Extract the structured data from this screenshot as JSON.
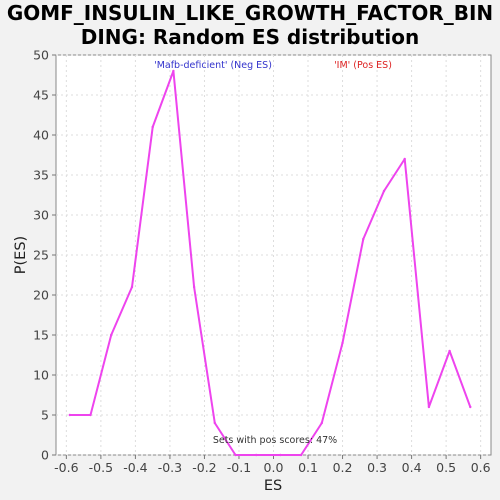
{
  "chart_data": {
    "type": "line",
    "title": "GOMF_INSULIN_LIKE_GROWTH_FACTOR_BINDING: Random ES distribution",
    "title_lines": [
      "GOMF_INSULIN_LIKE_GROWTH_FACTOR_BIN",
      "DING: Random ES distribution"
    ],
    "xlabel": "ES",
    "ylabel": "P(ES)",
    "xlim": [
      -0.63,
      0.63
    ],
    "ylim": [
      0,
      50
    ],
    "xticks": [
      -0.6,
      -0.5,
      -0.4,
      -0.3,
      -0.2,
      -0.1,
      0.0,
      0.1,
      0.2,
      0.3,
      0.4,
      0.5,
      0.6
    ],
    "xtick_labels": [
      "-0.6",
      "-0.5",
      "-0.4",
      "-0.3",
      "-0.2",
      "-0.1",
      "0.0",
      "0.1",
      "0.2",
      "0.3",
      "0.4",
      "0.5",
      "0.6"
    ],
    "yticks": [
      0,
      5,
      10,
      15,
      20,
      25,
      30,
      35,
      40,
      45,
      50
    ],
    "ytick_labels": [
      "0",
      "5",
      "10",
      "15",
      "20",
      "25",
      "30",
      "35",
      "40",
      "45",
      "50"
    ],
    "grid": true,
    "series": [
      {
        "color": "#ee44ee",
        "x": [
          -0.59,
          -0.53,
          -0.47,
          -0.41,
          -0.35,
          -0.29,
          -0.23,
          -0.17,
          -0.11,
          -0.05,
          0.02,
          0.08,
          0.14,
          0.2,
          0.26,
          0.32,
          0.38,
          0.45,
          0.51,
          0.57
        ],
        "y": [
          5,
          5,
          15,
          21,
          41,
          48,
          21,
          4,
          0,
          0,
          0,
          0,
          4,
          14,
          27,
          33,
          37,
          6,
          13,
          6
        ]
      }
    ],
    "annotations": {
      "neg_label": "'Mafb-deficient' (Neg ES)",
      "pos_label": "'IM' (Pos ES)",
      "footer": "Sets with pos scores: 47%"
    },
    "colors": {
      "neg": "#3333cc",
      "pos": "#dd2222",
      "line": "#ee44ee",
      "plot_bg": "#ffffff",
      "page_bg": "#f2f2f2"
    }
  }
}
